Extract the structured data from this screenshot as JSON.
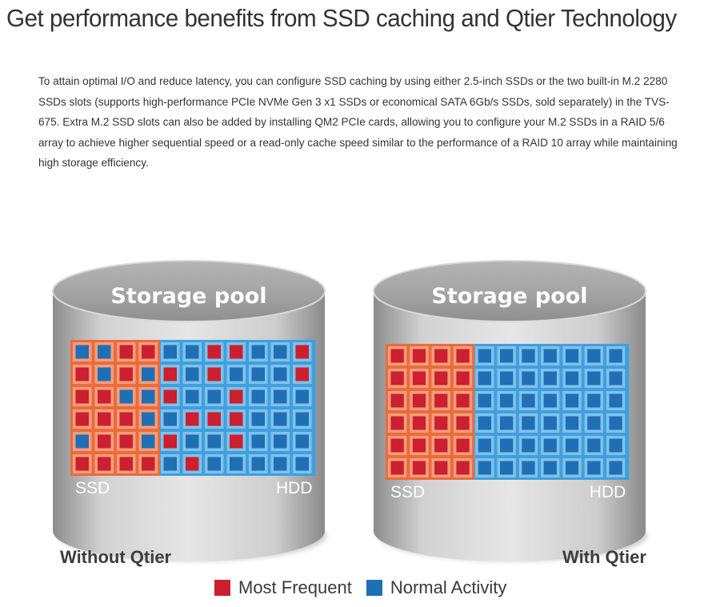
{
  "headline": "Get performance benefits from SSD caching and Qtier Technology",
  "intro": "To attain optimal I/O and reduce latency, you can configure SSD caching by using either 2.5-inch SSDs or the two built-in M.2 2280 SSDs slots (supports high-performance PCIe NVMe Gen 3 x1 SSDs or economical SATA 6Gb/s SSDs, sold separately) in the TVS-675. Extra M.2 SSD slots can also be added by installing QM2 PCIe cards, allowing you to configure your M.2 SSDs in a RAID 5/6 array to achieve higher sequential speed or a read-only cache speed similar to the performance of a RAID 10 array while maintaining high storage efficiency.",
  "colors": {
    "most_frequent": "#cc1f2f",
    "normal_activity": "#1f6fb5",
    "ssd_tier": "#ec6b3a",
    "hdd_tier": "#3ea0de"
  },
  "diagrams": [
    {
      "pool_label": "Storage pool",
      "ssd_label": "SSD",
      "hdd_label": "HDD",
      "caption": "Without Qtier",
      "ssd_columns": 4,
      "grid": [
        "BBRRBBRRBBR",
        "RBRBRBRBBBR",
        "RRBBRBBRBBB",
        "RRRBBRRRBBB",
        "BRRBRBBRBBB",
        "RRRRBRBBBBB"
      ]
    },
    {
      "pool_label": "Storage pool",
      "ssd_label": "SSD",
      "hdd_label": "HDD",
      "caption": "With Qtier",
      "ssd_columns": 4,
      "grid": [
        "RRRRBBBBBBB",
        "RRRRBBBBBBB",
        "RRRRBBBBBBB",
        "RRRRBBBBBBB",
        "RRRRBBBBBBB",
        "RRRRBBBBBBB"
      ]
    }
  ],
  "legend": {
    "most_frequent": "Most Frequent",
    "normal_activity": "Normal Activity"
  }
}
